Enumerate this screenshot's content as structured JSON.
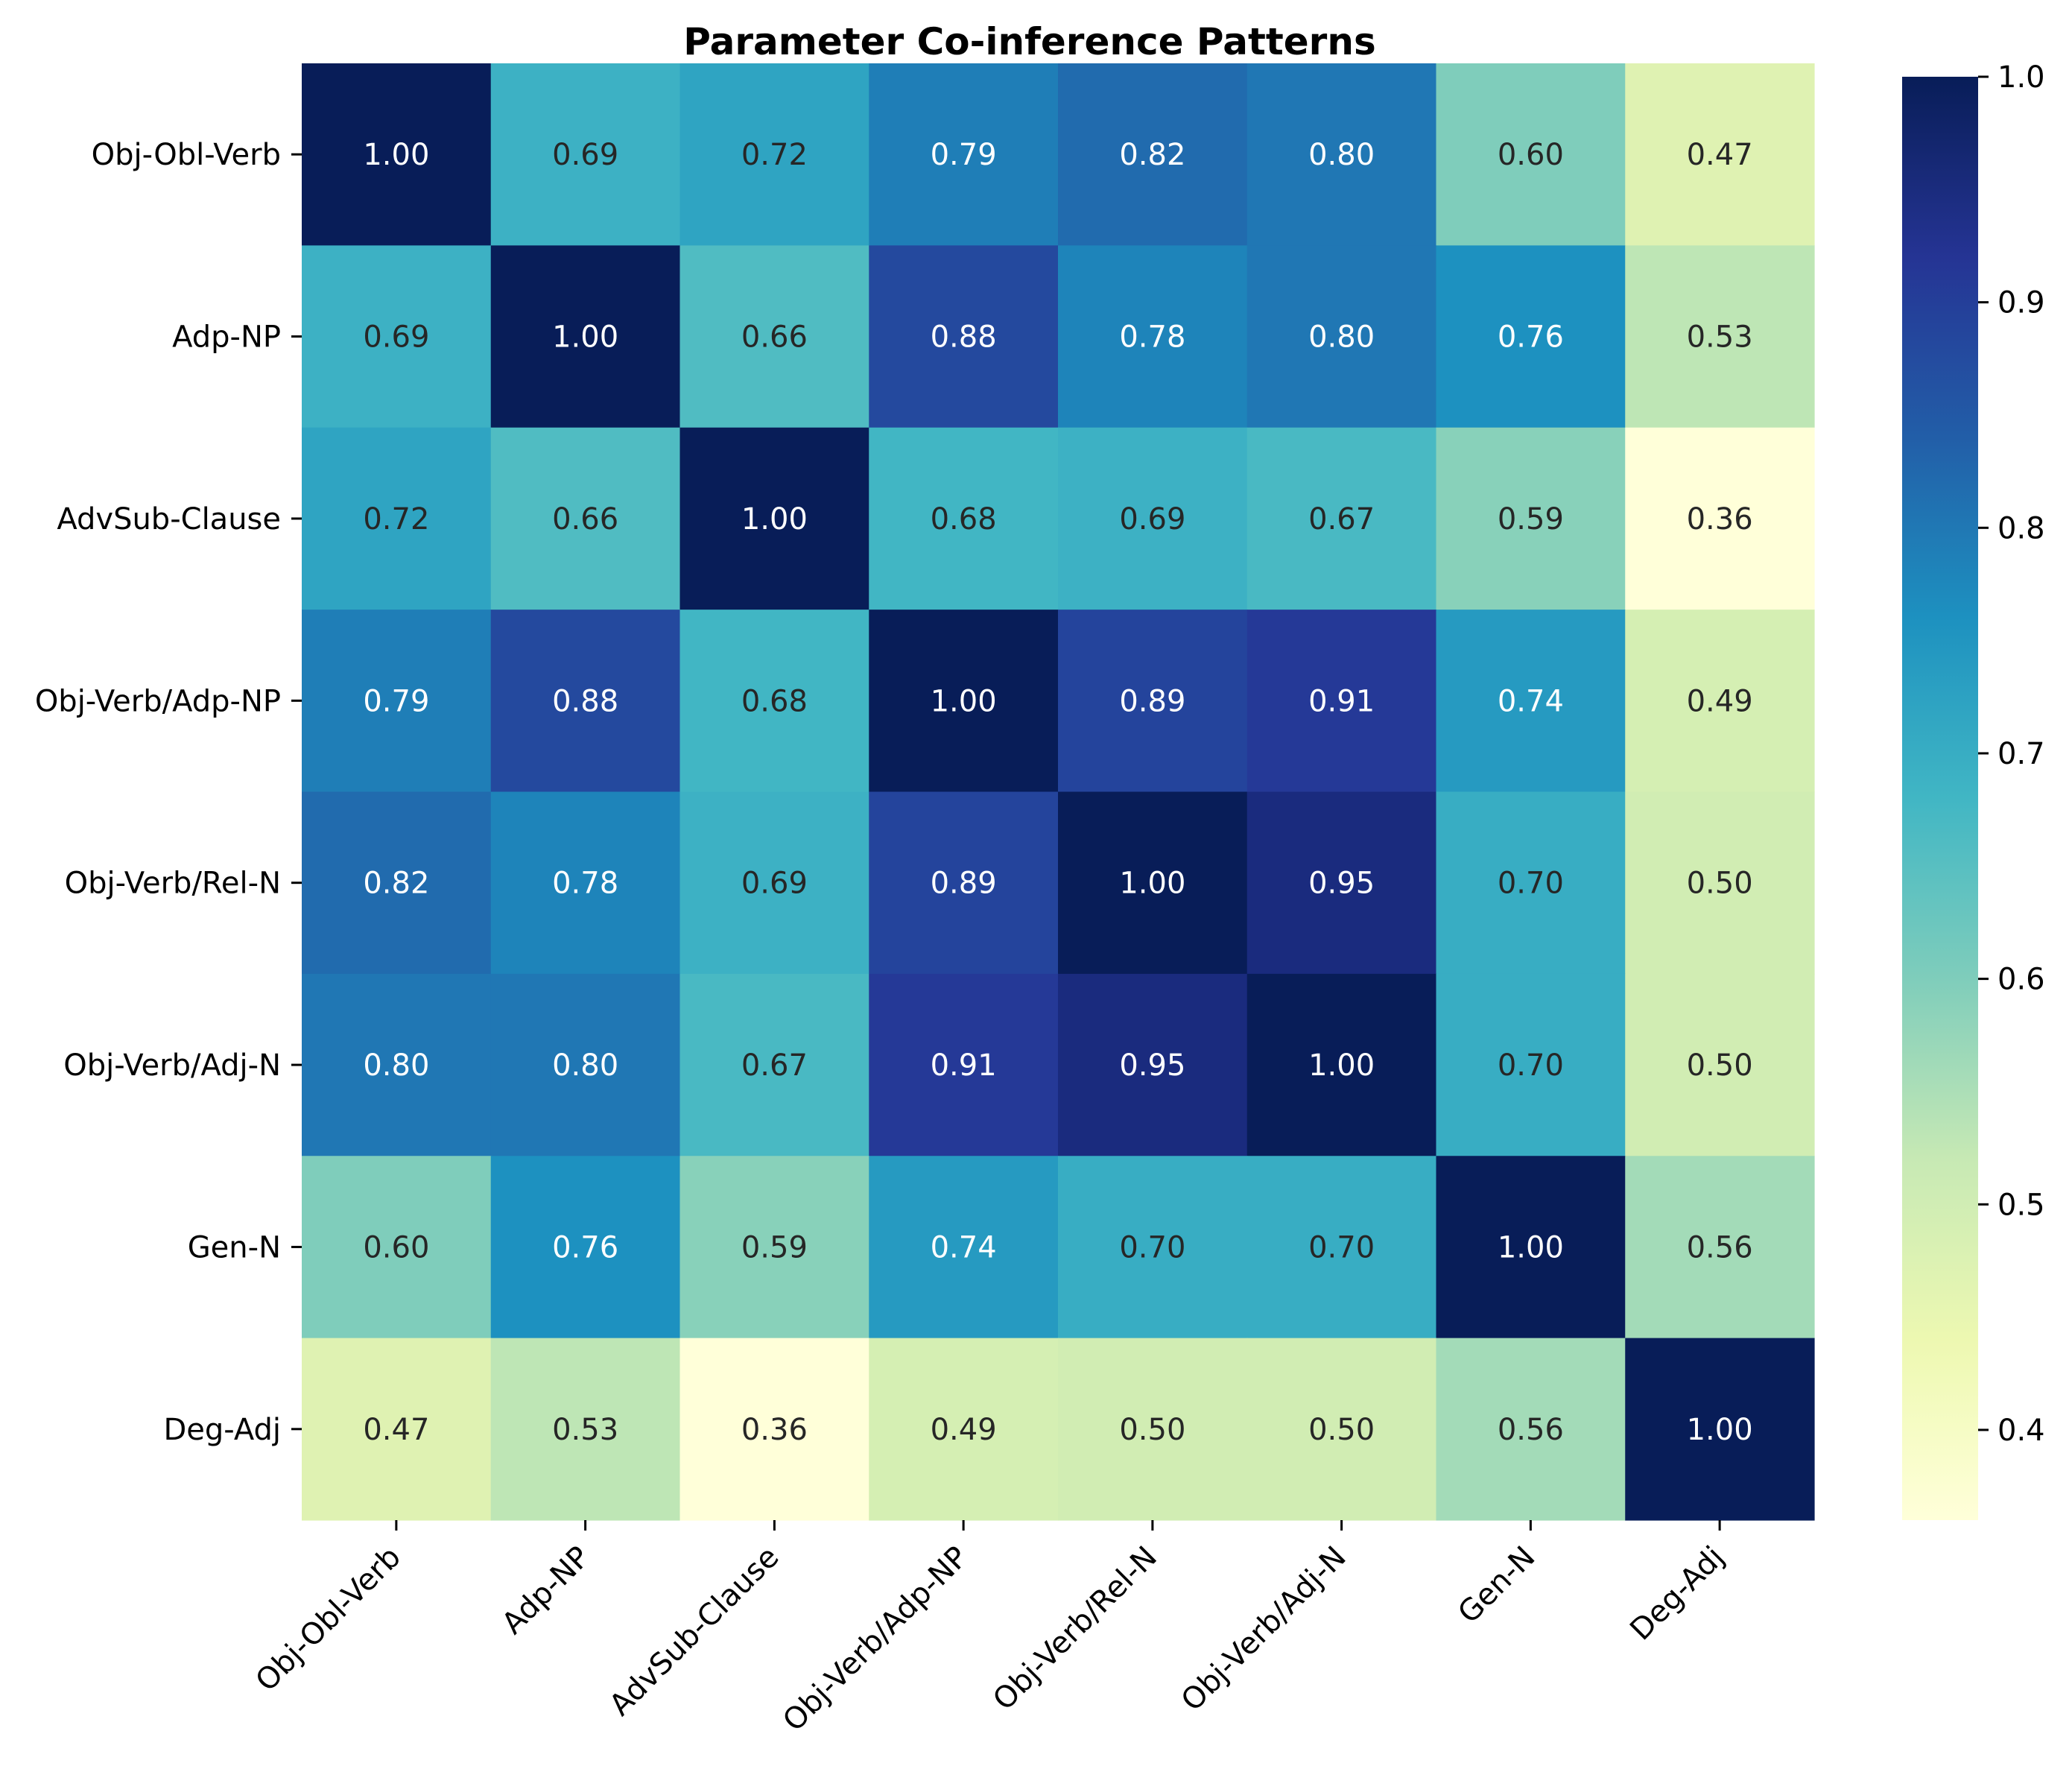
{
  "chart_data": {
    "type": "heatmap",
    "title": "Parameter Co-inference Patterns",
    "xlabel": "",
    "ylabel": "",
    "rows": [
      "Obj-Obl-Verb",
      "Adp-NP",
      "AdvSub-Clause",
      "Obj-Verb/Adp-NP",
      "Obj-Verb/Rel-N",
      "Obj-Verb/Adj-N",
      "Gen-N",
      "Deg-Adj"
    ],
    "columns": [
      "Obj-Obl-Verb",
      "Adp-NP",
      "AdvSub-Clause",
      "Obj-Verb/Adp-NP",
      "Obj-Verb/Rel-N",
      "Obj-Verb/Adj-N",
      "Gen-N",
      "Deg-Adj"
    ],
    "values": [
      [
        1.0,
        0.69,
        0.72,
        0.79,
        0.82,
        0.8,
        0.6,
        0.47
      ],
      [
        0.69,
        1.0,
        0.66,
        0.88,
        0.78,
        0.8,
        0.76,
        0.53
      ],
      [
        0.72,
        0.66,
        1.0,
        0.68,
        0.69,
        0.67,
        0.59,
        0.36
      ],
      [
        0.79,
        0.88,
        0.68,
        1.0,
        0.89,
        0.91,
        0.74,
        0.49
      ],
      [
        0.82,
        0.78,
        0.69,
        0.89,
        1.0,
        0.95,
        0.7,
        0.5
      ],
      [
        0.8,
        0.8,
        0.67,
        0.91,
        0.95,
        1.0,
        0.7,
        0.5
      ],
      [
        0.6,
        0.76,
        0.59,
        0.74,
        0.7,
        0.7,
        1.0,
        0.56
      ],
      [
        0.47,
        0.53,
        0.36,
        0.49,
        0.5,
        0.5,
        0.56,
        1.0
      ]
    ],
    "value_format": "0.00",
    "colormap": "YlGnBu",
    "vmin": 0.36,
    "vmax": 1.0,
    "colorbar": {
      "ticks": [
        0.4,
        0.5,
        0.6,
        0.7,
        0.8,
        0.9,
        1.0
      ],
      "tick_labels": [
        "0.4",
        "0.5",
        "0.6",
        "0.7",
        "0.8",
        "0.9",
        "1.0"
      ]
    },
    "grid": false,
    "legend": "colorbar-right"
  }
}
